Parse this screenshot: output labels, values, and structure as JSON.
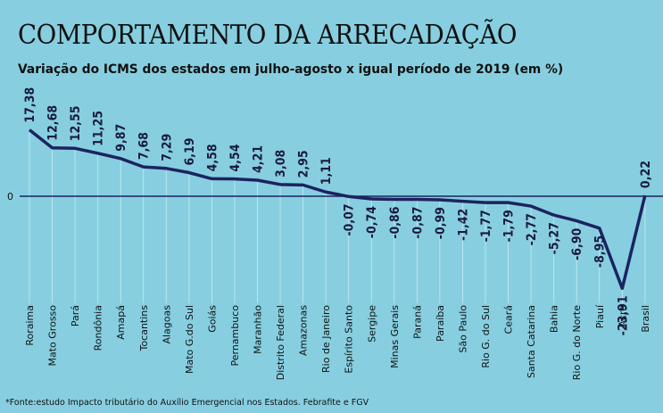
{
  "header": {
    "title": "COMPORTAMENTO DA ARRECADAÇÃO",
    "subtitle": "Variação do ICMS dos estados em julho-agosto x igual período de 2019 (em %)"
  },
  "footnote": "*Fonte:estudo Impacto tributário do Auxílio Emergencial nos Estados. Febrafite e FGV",
  "colors": {
    "background": "#87cfe0",
    "line": "#1c2360",
    "text": "#111111"
  },
  "chart_data": {
    "type": "line",
    "title": "COMPORTAMENTO DA ARRECADAÇÃO",
    "subtitle": "Variação do ICMS dos estados em julho-agosto x igual período de 2019 (em %)",
    "zero_label": "0",
    "categories": [
      "Roraima",
      "Mato Grosso",
      "Pará",
      "Rondônia",
      "Amapá",
      "Tocantins",
      "Alagoas",
      "Mato G.do Sul",
      "Goiás",
      "Pernambuco",
      "Maranhão",
      "Distrito Federal",
      "Amazonas",
      "Rio de Janeiro",
      "Espírito Santo",
      "Sergipe",
      "Minas Gerais",
      "Paraná",
      "Paraíba",
      "São Paulo",
      "Rio G. do Sul",
      "Ceará",
      "Santa Catarina",
      "Bahia",
      "Rio G. do Norte",
      "Piauí",
      "Acre",
      "Brasil"
    ],
    "values": [
      17.38,
      12.68,
      12.55,
      11.25,
      9.87,
      7.68,
      7.29,
      6.19,
      4.58,
      4.54,
      4.21,
      3.08,
      2.95,
      1.11,
      -0.07,
      -0.74,
      -0.86,
      -0.87,
      -0.99,
      -1.42,
      -1.77,
      -1.79,
      -2.77,
      -5.27,
      -6.9,
      -8.95,
      -23.91,
      0.22
    ],
    "labels": [
      "17,38",
      "12,68",
      "12,55",
      "11,25",
      "9,87",
      "7,68",
      "7,29",
      "6,19",
      "4,58",
      "4,54",
      "4,21",
      "3,08",
      "2,95",
      "1,11",
      "-0,07",
      "-0,74",
      "-0,86",
      "-0,87",
      "-0,99",
      "-1,42",
      "-1,77",
      "-1,79",
      "-2,77",
      "-5,27",
      "-6,90",
      "-8,95",
      "-23,91",
      "0,22"
    ],
    "grid": false,
    "legend": "none"
  }
}
